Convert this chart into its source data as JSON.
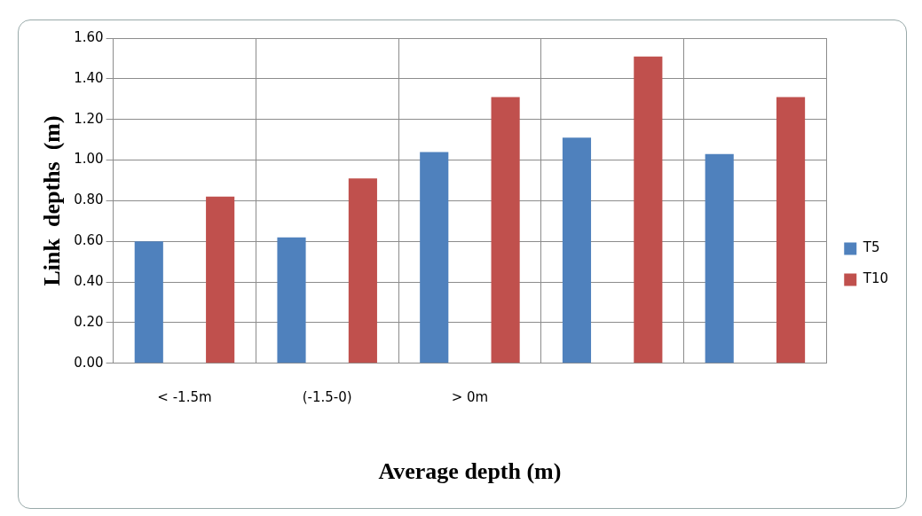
{
  "chart_data": {
    "type": "bar",
    "xlabel": "Average depth (m)",
    "ylabel": "Link  depths  (m)",
    "categories": [
      "< -1.5m",
      "(-1.5-0)",
      "> 0m",
      null,
      null
    ],
    "series": [
      {
        "name": "T5",
        "color": "#4f81bd",
        "values": [
          0.6,
          0.62,
          1.04,
          1.11,
          1.03
        ]
      },
      {
        "name": "T10",
        "color": "#c0504d",
        "values": [
          0.82,
          0.91,
          1.31,
          1.51,
          1.31
        ]
      }
    ],
    "ylim": [
      0,
      1.6
    ],
    "yticks": [
      {
        "value": 0,
        "label": "0.00"
      },
      {
        "value": 0.2,
        "label": "0.20"
      },
      {
        "value": 0.4,
        "label": "0.40"
      },
      {
        "value": 0.6,
        "label": "0.60"
      },
      {
        "value": 0.8,
        "label": "0.80"
      },
      {
        "value": 1,
        "label": "1.00"
      },
      {
        "value": 1.2,
        "label": "1.20"
      },
      {
        "value": 1.4,
        "label": "1.40"
      },
      {
        "value": 1.6,
        "label": "1.60"
      }
    ],
    "grid": true,
    "legend": "right"
  }
}
